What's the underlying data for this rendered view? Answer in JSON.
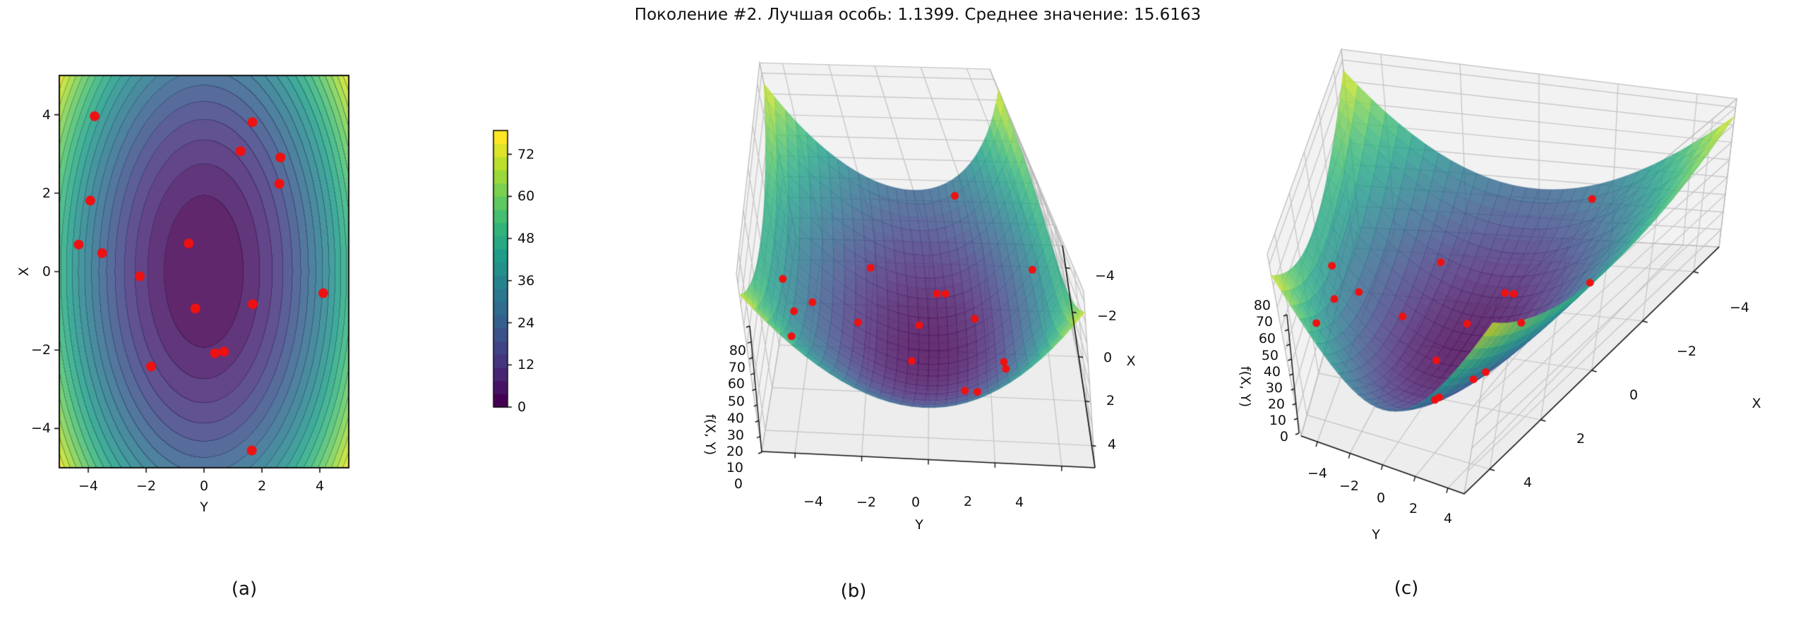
{
  "title": "Поколение #2. Лучшая особь: 1.1399. Среднее значение: 15.6163",
  "captions": {
    "a": "(a)",
    "b": "(b)",
    "c": "(c)"
  },
  "chart_data": {
    "generation": 2,
    "best_individual": 1.1399,
    "mean_value": 15.6163,
    "surface_function": "f(X, Y) = X^2 + 2*Y^2",
    "colormap": "viridis",
    "point_color": "#ee1111",
    "xlim": [
      -5,
      5
    ],
    "ylim": [
      -5,
      5
    ],
    "zlim": [
      0,
      85
    ],
    "levels": {
      "min": 0,
      "max": 78.75,
      "step": 3.75
    },
    "labels": {
      "x": "Y",
      "y": "X",
      "z": "f(X, Y)"
    },
    "axis_ticks": [
      -4,
      -2,
      0,
      2,
      4
    ],
    "zticks": [
      0,
      10,
      20,
      30,
      40,
      50,
      60,
      70,
      80
    ],
    "colorbar_ticks": [
      0,
      12,
      24,
      36,
      48,
      60,
      72
    ],
    "subplots": [
      {
        "id": "a",
        "type": "heatmap",
        "style": "filled-contour",
        "caption": "(a)",
        "xlabel": "Y",
        "ylabel": "X"
      },
      {
        "id": "b",
        "type": "scatter",
        "projection": "3d",
        "caption": "(b)",
        "xlabel": "Y",
        "ylabel": "X",
        "zlabel": "f(X, Y)"
      },
      {
        "id": "c",
        "type": "scatter",
        "projection": "3d",
        "caption": "(c)",
        "xlabel": "Y",
        "ylabel": "X",
        "zlabel": "f(X, Y)"
      }
    ],
    "population_points": [
      {
        "Y": -3.78,
        "X": 3.96
      },
      {
        "Y": 1.67,
        "X": 3.81
      },
      {
        "Y": 1.26,
        "X": 3.07
      },
      {
        "Y": 2.64,
        "X": 2.91
      },
      {
        "Y": 2.6,
        "X": 2.24
      },
      {
        "Y": -3.93,
        "X": 1.81
      },
      {
        "Y": -4.33,
        "X": 0.69
      },
      {
        "Y": -3.52,
        "X": 0.47
      },
      {
        "Y": -0.53,
        "X": 0.72
      },
      {
        "Y": -2.22,
        "X": -0.12
      },
      {
        "Y": 4.12,
        "X": -0.55
      },
      {
        "Y": 1.68,
        "X": -0.83
      },
      {
        "Y": -0.3,
        "X": -0.94
      },
      {
        "Y": 0.38,
        "X": -2.08
      },
      {
        "Y": 0.69,
        "X": -2.04
      },
      {
        "Y": -1.83,
        "X": -2.42
      },
      {
        "Y": 1.65,
        "X": -4.56
      }
    ]
  }
}
